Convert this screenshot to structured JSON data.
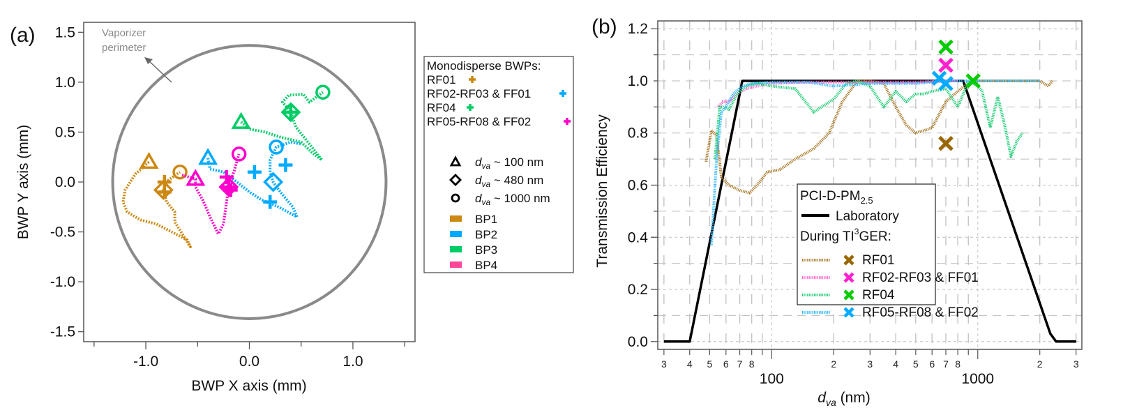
{
  "chart_data": [
    {
      "panel": "(a)",
      "type": "scatter",
      "title": "",
      "xlabel": "BWP X axis (mm)",
      "ylabel": "BWP Y axis (mm)",
      "xlim": [
        -1.6,
        1.6
      ],
      "ylim": [
        -1.6,
        1.6
      ],
      "xticks": [
        -1.0,
        0.0,
        1.0
      ],
      "xtick_labels": [
        "-1.0",
        "0.0",
        "1.0"
      ],
      "yticks": [
        1.5,
        1.0,
        0.5,
        0.0,
        -0.5,
        -1.0,
        -1.5
      ],
      "ytick_labels": [
        "1.5",
        "1.0",
        "0.5",
        "0.0",
        "-0.5",
        "-1.0",
        "-1.5"
      ],
      "grid": false,
      "annotation": {
        "text_lines": [
          "Vaporizer",
          "perimeter"
        ],
        "color": "#8a8a8a"
      },
      "vaporizer_circle": {
        "center": [
          0,
          0
        ],
        "radius_mm": 1.32,
        "color": "#8a8a8a"
      },
      "series": [
        {
          "name": "BP1",
          "color": "#CC8811",
          "markers": {
            "triangle_100nm": [
              -0.97,
              0.2
            ],
            "diamond_480nm": [
              -0.83,
              -0.08
            ],
            "circle_1000nm": [
              -0.67,
              0.1
            ]
          },
          "path": [
            [
              -0.97,
              0.2
            ],
            [
              -1.1,
              0.08
            ],
            [
              -1.2,
              -0.08
            ],
            [
              -1.22,
              -0.2
            ],
            [
              -1.18,
              -0.3
            ],
            [
              -1.05,
              -0.38
            ],
            [
              -0.9,
              -0.42
            ],
            [
              -0.75,
              -0.5
            ],
            [
              -0.6,
              -0.58
            ],
            [
              -0.57,
              -0.65
            ],
            [
              -0.63,
              -0.55
            ],
            [
              -0.72,
              -0.4
            ],
            [
              -0.72,
              -0.3
            ],
            [
              -0.8,
              -0.2
            ],
            [
              -0.83,
              -0.08
            ],
            [
              -0.78,
              0.02
            ],
            [
              -0.7,
              0.08
            ],
            [
              -0.67,
              0.1
            ]
          ]
        },
        {
          "name": "BP2",
          "color": "#00AAFF",
          "markers": {
            "triangle_100nm": [
              -0.4,
              0.24
            ],
            "diamond_480nm": [
              0.23,
              0.0
            ],
            "circle_1000nm": [
              0.26,
              0.35
            ]
          },
          "path": [
            [
              -0.4,
              0.24
            ],
            [
              -0.38,
              0.13
            ],
            [
              -0.25,
              0.1
            ],
            [
              -0.12,
              0.0
            ],
            [
              0.0,
              -0.1
            ],
            [
              0.12,
              -0.18
            ],
            [
              0.28,
              -0.25
            ],
            [
              0.46,
              -0.35
            ],
            [
              0.42,
              -0.25
            ],
            [
              0.3,
              -0.1
            ],
            [
              0.23,
              0.0
            ],
            [
              0.2,
              0.1
            ],
            [
              0.2,
              0.22
            ],
            [
              0.26,
              0.35
            ],
            [
              0.4,
              0.4
            ],
            [
              0.5,
              0.38
            ]
          ]
        },
        {
          "name": "BP3",
          "color": "#00CC66",
          "markers": {
            "triangle_100nm": [
              -0.08,
              0.6
            ],
            "diamond_480nm": [
              0.4,
              0.7
            ],
            "circle_1000nm": [
              0.71,
              0.9
            ]
          },
          "path": [
            [
              -0.08,
              0.6
            ],
            [
              0.0,
              0.53
            ],
            [
              0.15,
              0.5
            ],
            [
              0.3,
              0.45
            ],
            [
              0.5,
              0.4
            ],
            [
              0.6,
              0.3
            ],
            [
              0.7,
              0.22
            ],
            [
              0.58,
              0.38
            ],
            [
              0.45,
              0.55
            ],
            [
              0.4,
              0.7
            ],
            [
              0.32,
              0.8
            ],
            [
              0.38,
              0.87
            ],
            [
              0.52,
              0.88
            ],
            [
              0.58,
              0.8
            ],
            [
              0.71,
              0.9
            ]
          ]
        },
        {
          "name": "BP4",
          "color": "#FF00CC",
          "markers": {
            "triangle_100nm": [
              -0.52,
              0.03
            ],
            "diamond_480nm": [
              -0.2,
              -0.05
            ],
            "circle_1000nm": [
              -0.1,
              0.28
            ]
          },
          "path": [
            [
              -0.65,
              0.07
            ],
            [
              -0.52,
              0.03
            ],
            [
              -0.52,
              -0.05
            ],
            [
              -0.45,
              -0.18
            ],
            [
              -0.38,
              -0.35
            ],
            [
              -0.3,
              -0.52
            ],
            [
              -0.25,
              -0.42
            ],
            [
              -0.22,
              -0.2
            ],
            [
              -0.2,
              -0.05
            ],
            [
              -0.15,
              0.1
            ],
            [
              -0.1,
              0.28
            ]
          ]
        }
      ],
      "monodisperse_crosses": [
        {
          "campaign": "RF01",
          "color": "#CC8811",
          "points": [
            [
              -0.82,
              0.0
            ],
            [
              -0.82,
              -0.1
            ]
          ]
        },
        {
          "campaign": "RF02-RF03 & FF01",
          "color": "#00AAFF",
          "points": [
            [
              0.05,
              0.1
            ],
            [
              0.2,
              -0.2
            ],
            [
              0.35,
              0.17
            ]
          ]
        },
        {
          "campaign": "RF04",
          "color": "#00CC66",
          "points": [
            [
              0.4,
              0.7
            ]
          ]
        },
        {
          "campaign": "RF05-RF08 & FF02",
          "color": "#FF00CC",
          "points": [
            [
              -0.22,
              0.05
            ],
            [
              -0.2,
              -0.05
            ],
            [
              -0.18,
              -0.08
            ]
          ]
        }
      ]
    },
    {
      "panel": "(b)",
      "type": "line",
      "title": "",
      "xlabel": "d_va (nm)",
      "xlabel_main": "d",
      "xlabel_sub": "va",
      "xlabel_rest": " (nm)",
      "ylabel": "Transmission Efficiency",
      "xscale": "log",
      "xlim": [
        28,
        3200
      ],
      "ylim": [
        -0.03,
        1.23
      ],
      "yticks": [
        0.0,
        0.2,
        0.4,
        0.6,
        0.8,
        1.0,
        1.2
      ],
      "ytick_labels": [
        "0.0",
        "0.2",
        "0.4",
        "0.6",
        "0.8",
        "1.0",
        "1.2"
      ],
      "x_major_labels": [
        {
          "v": 100,
          "t": "100"
        },
        {
          "v": 1000,
          "t": "1000"
        }
      ],
      "x_minor_labels": [
        {
          "v": 30,
          "t": "3"
        },
        {
          "v": 40,
          "t": "4"
        },
        {
          "v": 50,
          "t": "5"
        },
        {
          "v": 60,
          "t": "6"
        },
        {
          "v": 70,
          "t": "7"
        },
        {
          "v": 80,
          "t": "8"
        },
        {
          "v": 200,
          "t": "2"
        },
        {
          "v": 300,
          "t": "3"
        },
        {
          "v": 400,
          "t": "4"
        },
        {
          "v": 500,
          "t": "5"
        },
        {
          "v": 600,
          "t": "6"
        },
        {
          "v": 700,
          "t": "7"
        },
        {
          "v": 800,
          "t": "8"
        },
        {
          "v": 2000,
          "t": "2"
        },
        {
          "v": 3000,
          "t": "3"
        }
      ],
      "grid": true,
      "legend": {
        "placement": "bottom-center",
        "title": "PCI-D-PM",
        "title_sub": "2.5",
        "laboratory_label": "Laboratory",
        "during_label_a": "During TI",
        "during_sup": "3",
        "during_label_b": "GER:",
        "entries": [
          "RF01",
          "RF02-RF03 & FF01",
          "RF04",
          "RF05-RF08 & FF02"
        ]
      },
      "series": [
        {
          "name": "Laboratory",
          "color": "#000000",
          "style": "solid",
          "x": [
            30,
            40,
            72,
            850,
            2250,
            2400,
            3000
          ],
          "y": [
            0,
            0,
            1.0,
            1.0,
            0.03,
            0,
            0
          ]
        },
        {
          "name": "RF01",
          "color": "#A87B2C",
          "style": "dotted",
          "x": [
            48,
            51,
            54,
            57,
            62,
            70,
            78,
            85,
            95,
            110,
            130,
            160,
            190,
            220,
            260,
            300,
            350,
            400,
            450,
            500,
            550,
            600,
            700,
            800,
            900,
            1000,
            1200,
            1500,
            2000,
            2200,
            2300
          ],
          "y": [
            0.69,
            0.81,
            0.79,
            0.63,
            0.6,
            0.58,
            0.57,
            0.6,
            0.65,
            0.66,
            0.7,
            0.74,
            0.8,
            0.92,
            1.0,
            1.0,
            0.99,
            0.9,
            0.83,
            0.8,
            0.81,
            0.82,
            0.92,
            0.96,
            0.99,
            1.0,
            1.0,
            1.0,
            1.0,
            0.98,
            1.0
          ]
        },
        {
          "name": "RF02-RF03 & FF01",
          "color": "#FF66CC",
          "style": "dotted",
          "x": [
            55,
            58,
            62,
            68,
            75,
            85,
            100,
            150,
            200,
            300,
            500,
            700,
            800
          ],
          "y": [
            0.9,
            0.92,
            0.92,
            0.95,
            0.97,
            0.98,
            0.99,
            0.995,
            0.995,
            0.995,
            0.995,
            1.0,
            1.0
          ]
        },
        {
          "name": "RF04",
          "color": "#22CC77",
          "style": "dotted",
          "x": [
            53,
            56,
            58,
            62,
            68,
            75,
            85,
            100,
            130,
            160,
            200,
            230,
            260,
            300,
            350,
            400,
            450,
            500,
            550,
            600,
            700,
            800,
            850,
            900,
            1000,
            1050,
            1150,
            1250,
            1350,
            1450,
            1550,
            1650
          ],
          "y": [
            0.7,
            0.9,
            0.9,
            0.89,
            0.95,
            0.98,
            0.99,
            0.98,
            0.97,
            0.88,
            0.93,
            0.99,
            1.0,
            0.98,
            0.9,
            0.96,
            0.92,
            0.95,
            0.95,
            0.96,
            0.97,
            0.9,
            0.95,
            1.0,
            0.98,
            0.96,
            0.82,
            0.94,
            0.83,
            0.71,
            0.77,
            0.8
          ]
        },
        {
          "name": "RF05-RF08 & FF02",
          "color": "#33BBFF",
          "style": "dotted",
          "x": [
            51,
            54,
            57,
            60,
            65,
            72,
            80,
            100,
            150,
            200,
            300,
            400,
            500,
            700,
            1000,
            1500,
            2000
          ],
          "y": [
            0.37,
            0.7,
            0.88,
            0.9,
            0.95,
            0.98,
            0.99,
            0.995,
            0.995,
            0.98,
            0.99,
            0.99,
            0.99,
            1.0,
            1.0,
            1.0,
            1.0
          ]
        }
      ],
      "cross_markers": [
        {
          "name": "RF01",
          "color": "#996600",
          "points": [
            [
              700,
              0.76
            ]
          ]
        },
        {
          "name": "RF02-RF03 & FF01",
          "color": "#FF22CC",
          "points": [
            [
              700,
              1.06
            ]
          ]
        },
        {
          "name": "RF04",
          "color": "#00CC00",
          "points": [
            [
              700,
              1.13
            ],
            [
              950,
              1.0
            ]
          ]
        },
        {
          "name": "RF05-RF08 & FF02",
          "color": "#00AAFF",
          "points": [
            [
              650,
              1.01
            ],
            [
              700,
              0.99
            ]
          ]
        }
      ]
    }
  ],
  "legend_a": {
    "title": "Monodisperse BWPs:",
    "crosses": [
      {
        "label": "RF01",
        "color": "#CC8811"
      },
      {
        "label": "RF02-RF03 & FF01",
        "color": "#00AAFF"
      },
      {
        "label": "RF04",
        "color": "#00CC66"
      },
      {
        "label": "RF05-RF08 & FF02",
        "color": "#FF00CC"
      }
    ],
    "shapes": [
      {
        "shape": "triangle",
        "main": "d",
        "sub": "va",
        "rest": " ~ 100 nm"
      },
      {
        "shape": "diamond",
        "main": "d",
        "sub": "va",
        "rest": " ~ 480 nm"
      },
      {
        "shape": "circle",
        "main": "d",
        "sub": "va",
        "rest": " ~ 1000 nm"
      }
    ],
    "swatches": [
      {
        "label": "BP1",
        "color": "#CC8811"
      },
      {
        "label": "BP2",
        "color": "#00AAFF"
      },
      {
        "label": "BP3",
        "color": "#00CC66"
      },
      {
        "label": "BP4",
        "color": "#FF4499"
      }
    ]
  }
}
